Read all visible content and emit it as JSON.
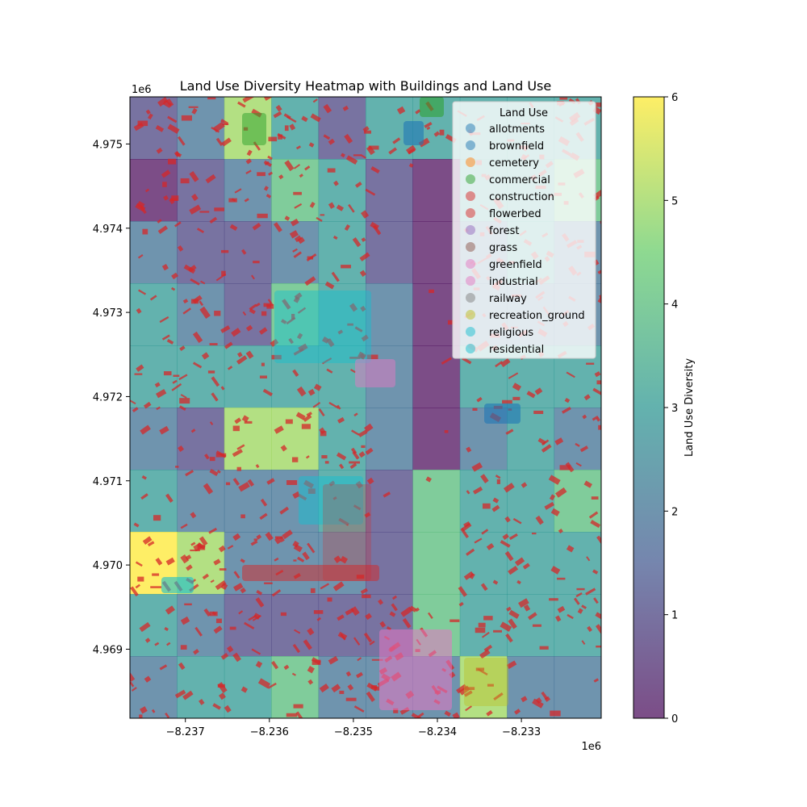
{
  "chart_data": {
    "type": "heatmap",
    "title": "Land Use Diversity Heatmap with Buildings and Land Use",
    "x_axis": {
      "offset_label": "1e6",
      "ticks": [
        {
          "value": -8.237,
          "label": "−8.237"
        },
        {
          "value": -8.236,
          "label": "−8.236"
        },
        {
          "value": -8.235,
          "label": "−8.235"
        },
        {
          "value": -8.234,
          "label": "−8.234"
        },
        {
          "value": -8.233,
          "label": "−8.233"
        }
      ],
      "range": [
        -8.23766,
        -8.23205
      ]
    },
    "y_axis": {
      "offset_label": "1e6",
      "ticks": [
        {
          "value": 4.969,
          "label": "4.969"
        },
        {
          "value": 4.97,
          "label": "4.970"
        },
        {
          "value": 4.971,
          "label": "4.971"
        },
        {
          "value": 4.972,
          "label": "4.972"
        },
        {
          "value": 4.973,
          "label": "4.973"
        },
        {
          "value": 4.974,
          "label": "4.974"
        },
        {
          "value": 4.975,
          "label": "4.975"
        }
      ],
      "range": [
        4.96818,
        4.97556
      ]
    },
    "colorbar": {
      "label": "Land Use Diversity",
      "range": [
        0,
        6
      ],
      "ticks": [
        0,
        1,
        2,
        3,
        4,
        5,
        6
      ],
      "colors": [
        "#440154",
        "#3b528b",
        "#21918c",
        "#5ec962",
        "#fde725"
      ]
    },
    "grid": {
      "rows": 10,
      "cols": 10,
      "cell_values": [
        [
          1,
          2,
          5,
          3,
          1,
          3,
          3,
          3,
          3,
          3
        ],
        [
          0,
          1,
          2,
          4,
          3,
          1,
          0,
          3,
          3,
          4
        ],
        [
          2,
          1,
          1,
          2,
          3,
          1,
          0,
          2,
          3,
          2
        ],
        [
          3,
          2,
          1,
          4,
          3,
          2,
          0,
          2,
          2,
          2
        ],
        [
          3,
          3,
          3,
          3,
          3,
          2,
          0,
          3,
          3,
          3
        ],
        [
          2,
          1,
          5,
          5,
          3,
          2,
          0,
          2,
          3,
          2
        ],
        [
          3,
          2,
          2,
          2,
          3,
          1,
          4,
          3,
          3,
          4
        ],
        [
          6,
          5,
          2,
          2,
          2,
          1,
          4,
          3,
          3,
          3
        ],
        [
          3,
          2,
          1,
          1,
          1,
          1,
          4,
          3,
          3,
          3
        ],
        [
          2,
          3,
          3,
          4,
          2,
          2,
          2,
          5,
          2,
          2
        ]
      ]
    },
    "legend": {
      "title": "Land Use",
      "placement": "upper right",
      "items": [
        {
          "label": "allotments",
          "color": "#1f77b4"
        },
        {
          "label": "brownfield",
          "color": "#1f77b4"
        },
        {
          "label": "cemetery",
          "color": "#ff7f0e"
        },
        {
          "label": "commercial",
          "color": "#2ca02c"
        },
        {
          "label": "construction",
          "color": "#d62728"
        },
        {
          "label": "flowerbed",
          "color": "#d62728"
        },
        {
          "label": "forest",
          "color": "#9467bd"
        },
        {
          "label": "grass",
          "color": "#8c564b"
        },
        {
          "label": "greenfield",
          "color": "#e377c2"
        },
        {
          "label": "industrial",
          "color": "#e377c2"
        },
        {
          "label": "railway",
          "color": "#7f7f7f"
        },
        {
          "label": "recreation_ground",
          "color": "#bcbd22"
        },
        {
          "label": "religious",
          "color": "#17becf"
        },
        {
          "label": "residential",
          "color": "#17becf"
        }
      ]
    },
    "building_color": "#d62728"
  }
}
